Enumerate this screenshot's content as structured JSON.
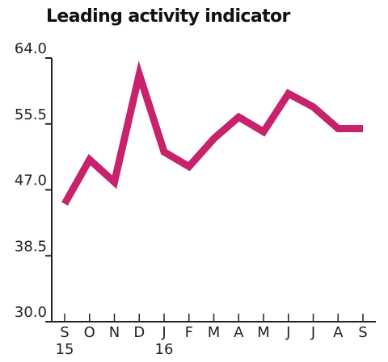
{
  "chart_data": {
    "type": "line",
    "title": "Leading activity indicator",
    "xlabel": "",
    "ylabel": "",
    "x": [
      "S",
      "O",
      "N",
      "D",
      "J",
      "F",
      "M",
      "A",
      "M",
      "J",
      "J",
      "A",
      "S"
    ],
    "x_sublabels": [
      "15",
      "",
      "",
      "",
      "16",
      "",
      "",
      "",
      "",
      "",
      "",
      "",
      ""
    ],
    "ylim": [
      30.0,
      64.0
    ],
    "yticks": [
      "30.0",
      "38.5",
      "47.0",
      "55.5",
      "64.0"
    ],
    "grid": false,
    "series": [
      {
        "values": [
          45.2,
          50.9,
          48.0,
          61.9,
          51.9,
          50.0,
          53.6,
          56.4,
          54.5,
          59.4,
          57.7,
          54.9,
          54.9
        ],
        "color": "#c7226b"
      }
    ],
    "axis_color": "#222222"
  }
}
